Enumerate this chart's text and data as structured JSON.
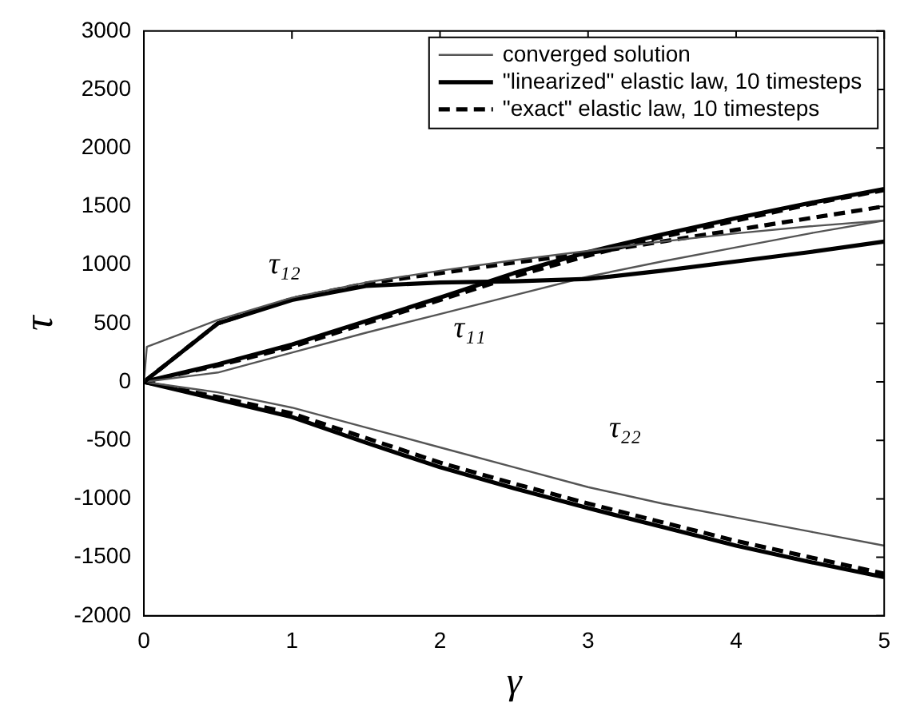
{
  "chart_data": {
    "type": "line",
    "xlabel": "γ",
    "ylabel": "τ",
    "xlim": [
      0,
      5
    ],
    "ylim": [
      -2000,
      3000
    ],
    "xticks": [
      0,
      1,
      2,
      3,
      4,
      5
    ],
    "yticks": [
      -2000,
      -1500,
      -1000,
      -500,
      0,
      500,
      1000,
      1500,
      2000,
      2500,
      3000
    ],
    "grid": false,
    "legend": "top right",
    "marker": "none",
    "x": [
      0,
      0.5,
      1,
      1.5,
      2,
      2.5,
      3,
      3.5,
      4,
      4.5,
      5
    ],
    "series": [
      {
        "name": "converged solution",
        "color": "#555555",
        "line_style": "solid",
        "x": [
          0,
          0.02,
          0.5,
          1,
          1.5,
          2,
          2.5,
          3,
          3.5,
          4,
          4.5,
          5
        ],
        "values": [
          0,
          300,
          530,
          720,
          850,
          950,
          1040,
          1120,
          1200,
          1270,
          1330,
          1380
        ]
      },
      {
        "name": "\"linearized\" elastic law, 10 timesteps",
        "color": "#000000",
        "line_style": "solid",
        "values": [
          0,
          500,
          700,
          820,
          850,
          860,
          880,
          950,
          1030,
          1110,
          1200
        ]
      },
      {
        "name": "\"exact\" elastic law, 10 timesteps",
        "color": "#000000",
        "line_style": "dashed",
        "values": [
          0,
          500,
          710,
          840,
          930,
          1020,
          1100,
          1200,
          1300,
          1400,
          1500
        ]
      },
      {
        "color": "#555555",
        "line_style": "solid",
        "values": [
          0,
          80,
          250,
          420,
          580,
          740,
          900,
          1030,
          1150,
          1270,
          1380
        ]
      },
      {
        "color": "#000000",
        "line_style": "solid",
        "values": [
          0,
          150,
          320,
          520,
          720,
          930,
          1110,
          1260,
          1400,
          1530,
          1650
        ]
      },
      {
        "color": "#000000",
        "line_style": "dashed",
        "values": [
          0,
          140,
          300,
          500,
          700,
          900,
          1080,
          1240,
          1380,
          1520,
          1640
        ]
      },
      {
        "color": "#555555",
        "line_style": "solid",
        "values": [
          0,
          -90,
          -220,
          -390,
          -560,
          -730,
          -900,
          -1040,
          -1160,
          -1280,
          -1400
        ]
      },
      {
        "color": "#000000",
        "line_style": "solid",
        "values": [
          0,
          -150,
          -300,
          -520,
          -730,
          -910,
          -1080,
          -1240,
          -1400,
          -1540,
          -1670
        ]
      },
      {
        "color": "#000000",
        "line_style": "dashed",
        "values": [
          0,
          -130,
          -270,
          -480,
          -690,
          -870,
          -1040,
          -1200,
          -1360,
          -1500,
          -1640
        ]
      }
    ],
    "annotations": [
      "τ₁₂",
      "τ₁₁",
      "τ₂₂"
    ]
  }
}
